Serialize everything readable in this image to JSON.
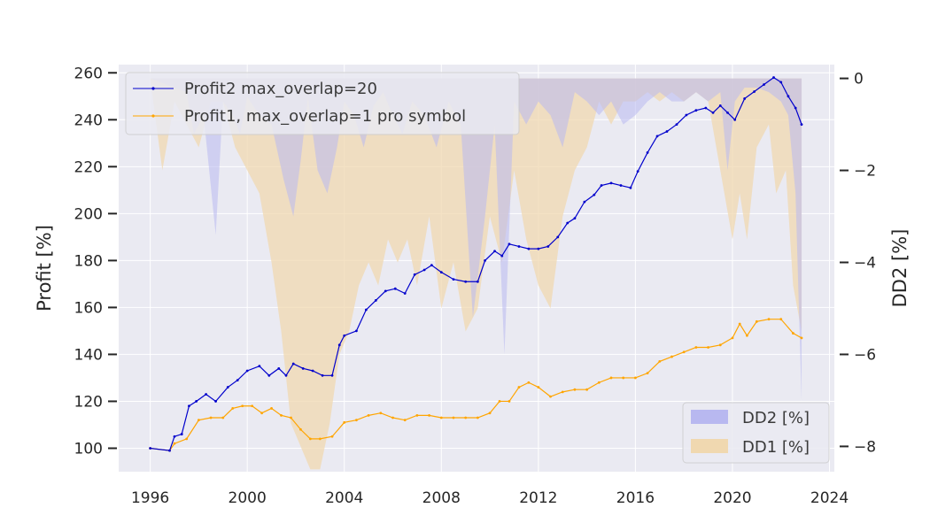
{
  "chart_data": {
    "type": "line",
    "xlabel": "",
    "ylabel": "Profit [%]",
    "y2label": "DD2 [%]",
    "xlim": [
      1994.7,
      2024.2
    ],
    "ylim": [
      90,
      263.5
    ],
    "y2lim": [
      -8.55,
      0.3
    ],
    "xticks": [
      1996,
      2000,
      2004,
      2008,
      2012,
      2016,
      2020,
      2024
    ],
    "yticks": [
      100,
      120,
      140,
      160,
      180,
      200,
      220,
      240,
      260
    ],
    "y2ticks": [
      0,
      -2,
      -4,
      -6,
      -8
    ],
    "y2ticklabels": [
      "0",
      "−2",
      "−4",
      "−6",
      "−8"
    ],
    "grid": true,
    "legend_lines_position": "top-left",
    "legend_areas_position": "bottom-right",
    "colors": {
      "profit2": "#0000cc",
      "profit1": "#ffa500",
      "dd2_fill": "#b8b8f0",
      "dd1_fill": "#f0d8b0",
      "background": "#eaeaf2",
      "grid": "#ffffff"
    },
    "series": [
      {
        "name": "Profit2 max_overlap=20",
        "axis": "left",
        "x": [
          1996.0,
          1996.8,
          1997.0,
          1997.3,
          1997.6,
          1997.9,
          1998.3,
          1998.7,
          1999.2,
          1999.6,
          2000.0,
          2000.5,
          2000.9,
          2001.3,
          2001.6,
          2001.9,
          2002.3,
          2002.7,
          2003.1,
          2003.5,
          2003.8,
          2004.0,
          2004.5,
          2004.9,
          2005.3,
          2005.7,
          2006.1,
          2006.5,
          2006.9,
          2007.3,
          2007.6,
          2008.0,
          2008.5,
          2009.0,
          2009.5,
          2009.8,
          2010.2,
          2010.5,
          2010.8,
          2011.2,
          2011.6,
          2012.0,
          2012.4,
          2012.8,
          2013.2,
          2013.5,
          2013.9,
          2014.3,
          2014.6,
          2015.0,
          2015.4,
          2015.8,
          2016.1,
          2016.5,
          2016.9,
          2017.3,
          2017.7,
          2018.1,
          2018.5,
          2018.9,
          2019.2,
          2019.5,
          2019.8,
          2020.1,
          2020.5,
          2020.9,
          2021.3,
          2021.7,
          2022.0,
          2022.3,
          2022.6,
          2022.85
        ],
        "values": [
          100,
          99,
          105,
          106,
          118,
          120,
          123,
          120,
          126,
          129,
          133,
          135,
          131,
          134,
          131,
          136,
          134,
          133,
          131,
          131,
          144,
          148,
          150,
          159,
          163,
          167,
          168,
          166,
          174,
          176,
          178,
          175,
          172,
          171,
          171,
          180,
          184,
          182,
          187,
          186,
          185,
          185,
          186,
          190,
          196,
          198,
          205,
          208,
          212,
          213,
          212,
          211,
          218,
          226,
          233,
          235,
          238,
          242,
          244,
          245,
          243,
          246,
          243,
          240,
          249,
          252,
          255,
          258,
          256,
          250,
          245,
          238
        ]
      },
      {
        "name": "Profit1, max_overlap=1 pro symbol",
        "axis": "left",
        "x": [
          1996.0,
          1996.8,
          1997.0,
          1997.5,
          1998.0,
          1998.5,
          1999.0,
          1999.4,
          1999.8,
          2000.2,
          2000.6,
          2001.0,
          2001.4,
          2001.8,
          2002.2,
          2002.6,
          2003.0,
          2003.5,
          2004.0,
          2004.5,
          2005.0,
          2005.5,
          2006.0,
          2006.5,
          2007.0,
          2007.5,
          2008.0,
          2008.5,
          2009.0,
          2009.5,
          2010.0,
          2010.4,
          2010.8,
          2011.2,
          2011.6,
          2012.0,
          2012.5,
          2013.0,
          2013.5,
          2014.0,
          2014.5,
          2015.0,
          2015.5,
          2016.0,
          2016.5,
          2017.0,
          2017.5,
          2018.0,
          2018.5,
          2019.0,
          2019.5,
          2020.0,
          2020.3,
          2020.6,
          2021.0,
          2021.5,
          2022.0,
          2022.5,
          2022.85
        ],
        "values": [
          100,
          99,
          102,
          104,
          112,
          113,
          113,
          117,
          118,
          118,
          115,
          117,
          114,
          113,
          108,
          104,
          104,
          105,
          111,
          112,
          114,
          115,
          113,
          112,
          114,
          114,
          113,
          113,
          113,
          113,
          115,
          120,
          120,
          126,
          128,
          126,
          122,
          124,
          125,
          125,
          128,
          130,
          130,
          130,
          132,
          137,
          139,
          141,
          143,
          143,
          144,
          147,
          153,
          148,
          154,
          155,
          155,
          149,
          147
        ]
      },
      {
        "name": "DD2 [%]",
        "axis": "right",
        "fill": "area",
        "x": [
          1996.0,
          1997.5,
          1997.8,
          1998.2,
          1998.7,
          1999.0,
          1999.4,
          1999.7,
          2000.0,
          2000.5,
          2001.0,
          2001.5,
          2001.9,
          2002.2,
          2002.5,
          2002.9,
          2003.3,
          2003.7,
          2004.0,
          2004.4,
          2004.8,
          2005.2,
          2005.6,
          2006.0,
          2006.4,
          2006.8,
          2007.3,
          2007.8,
          2008.3,
          2008.8,
          2009.3,
          2009.8,
          2010.2,
          2010.6,
          2011.0,
          2011.5,
          2012.0,
          2012.5,
          2013.0,
          2013.5,
          2014.0,
          2014.5,
          2015.0,
          2015.5,
          2016.0,
          2016.5,
          2017.0,
          2017.5,
          2018.0,
          2018.5,
          2019.0,
          2019.5,
          2019.8,
          2020.1,
          2020.5,
          2021.0,
          2021.5,
          2022.0,
          2022.3,
          2022.6,
          2022.85
        ],
        "values": [
          0,
          -0.3,
          -1.2,
          -0.8,
          -3.4,
          -0.5,
          -0.8,
          -1.2,
          -0.4,
          -0.8,
          -1.0,
          -2.2,
          -3.0,
          -1.8,
          -0.4,
          -2.0,
          -2.5,
          -1.5,
          -0.5,
          -0.8,
          -1.5,
          -0.6,
          -0.3,
          -0.8,
          -1.2,
          -0.5,
          -0.8,
          -1.5,
          -0.5,
          -1.0,
          -5.2,
          -3.0,
          -1.0,
          -6.0,
          -0.5,
          -1.0,
          -0.5,
          -0.8,
          -1.5,
          -0.3,
          -0.5,
          -0.8,
          -0.5,
          -1.0,
          -0.8,
          -0.5,
          -0.3,
          -0.5,
          -0.5,
          -0.3,
          -0.5,
          -0.3,
          -2.0,
          -0.5,
          -0.2,
          -0.2,
          -0.3,
          -0.5,
          -0.8,
          -2.5,
          -7.0
        ]
      },
      {
        "name": "DD1 [%]",
        "axis": "right",
        "fill": "area",
        "x": [
          1996.0,
          1996.5,
          1997.0,
          1997.5,
          1998.0,
          1998.5,
          1999.0,
          1999.5,
          2000.0,
          2000.5,
          2001.0,
          2001.4,
          2001.8,
          2002.2,
          2002.6,
          2003.0,
          2003.4,
          2003.8,
          2004.2,
          2004.6,
          2005.0,
          2005.4,
          2005.8,
          2006.2,
          2006.6,
          2007.0,
          2007.5,
          2008.0,
          2008.5,
          2009.0,
          2009.5,
          2010.0,
          2010.5,
          2011.0,
          2011.5,
          2012.0,
          2012.5,
          2013.0,
          2013.5,
          2014.0,
          2014.5,
          2015.0,
          2015.5,
          2016.0,
          2016.5,
          2017.0,
          2017.5,
          2018.0,
          2018.5,
          2019.0,
          2019.5,
          2020.0,
          2020.3,
          2020.6,
          2021.0,
          2021.5,
          2021.8,
          2022.2,
          2022.5,
          2022.85
        ],
        "values": [
          0,
          -2.0,
          -0.5,
          -1.0,
          -1.5,
          -0.5,
          -0.5,
          -1.5,
          -2.0,
          -2.5,
          -4.0,
          -5.5,
          -7.5,
          -8.0,
          -8.5,
          -8.5,
          -7.5,
          -6.0,
          -5.5,
          -4.5,
          -4.0,
          -4.5,
          -3.5,
          -4.0,
          -3.5,
          -4.5,
          -3.0,
          -5.0,
          -4.0,
          -5.5,
          -5.0,
          -3.0,
          -4.0,
          -2.0,
          -3.5,
          -4.5,
          -5.0,
          -3.0,
          -2.0,
          -1.5,
          -0.5,
          -1.0,
          -0.5,
          -0.5,
          -0.3,
          -0.5,
          -0.3,
          -0.5,
          -0.3,
          -0.5,
          -2.0,
          -3.5,
          -2.5,
          -3.5,
          -1.5,
          -1.0,
          -2.5,
          -2.0,
          -4.5,
          -5.5
        ]
      }
    ]
  }
}
